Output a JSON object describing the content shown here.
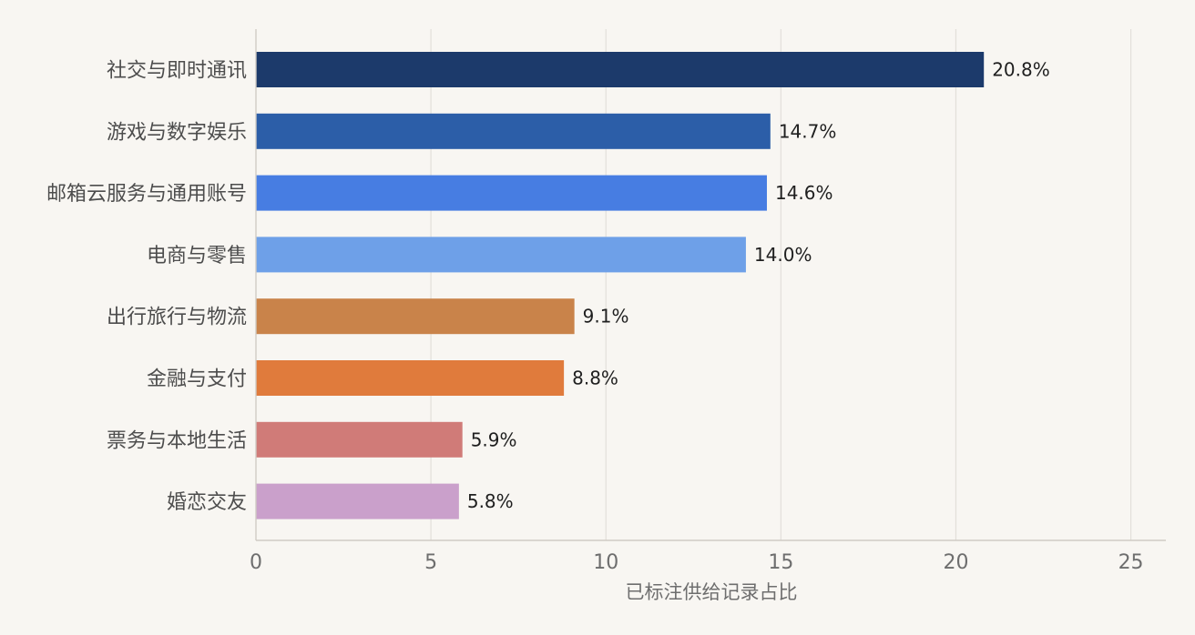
{
  "chart_data": {
    "type": "bar",
    "orientation": "horizontal",
    "categories": [
      "社交与即时通讯",
      "游戏与数字娱乐",
      "邮箱云服务与通用账号",
      "电商与零售",
      "出行旅行与物流",
      "金融与支付",
      "票务与本地生活",
      "婚恋交友"
    ],
    "values": [
      20.8,
      14.7,
      14.6,
      14.0,
      9.1,
      8.8,
      5.9,
      5.8
    ],
    "value_labels": [
      "20.8%",
      "14.7%",
      "14.6%",
      "14.0%",
      "9.1%",
      "8.8%",
      "5.9%",
      "5.8%"
    ],
    "colors": [
      "#1c3a6b",
      "#2c5ea8",
      "#477de2",
      "#6ea0e8",
      "#c9834a",
      "#e07b3c",
      "#d07b78",
      "#caa0cb"
    ],
    "xlabel": "已标注供给记录占比",
    "ylabel": "",
    "title": "",
    "xlim": [
      0,
      26
    ],
    "xticks": [
      0,
      5,
      10,
      15,
      20,
      25
    ],
    "xtick_labels": [
      "0",
      "5",
      "10",
      "15",
      "20",
      "25"
    ],
    "grid": "vertical",
    "legend": "none"
  }
}
